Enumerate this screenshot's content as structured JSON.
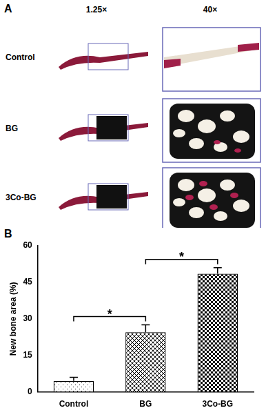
{
  "figure": {
    "panel_a": {
      "label": "A",
      "columns": [
        "1.25×",
        "40×"
      ],
      "rows": [
        "Control",
        "BG",
        "3Co-BG"
      ]
    },
    "panel_b": {
      "label": "B"
    }
  },
  "chart_data": {
    "type": "bar",
    "categories": [
      "Control",
      "BG",
      "3Co-BG"
    ],
    "values": [
      4.5,
      24.5,
      48.5
    ],
    "errors": [
      1.5,
      3,
      2.5
    ],
    "y_label": "New bone area (%)",
    "ylim": [
      0,
      60
    ],
    "yticks": [
      0,
      15,
      30,
      45,
      60
    ],
    "grid": false,
    "color": "#000000",
    "annotations": [
      {
        "from": "Control",
        "to": "BG",
        "label": "*"
      },
      {
        "from": "BG",
        "to": "3Co-BG",
        "label": "*"
      }
    ]
  }
}
